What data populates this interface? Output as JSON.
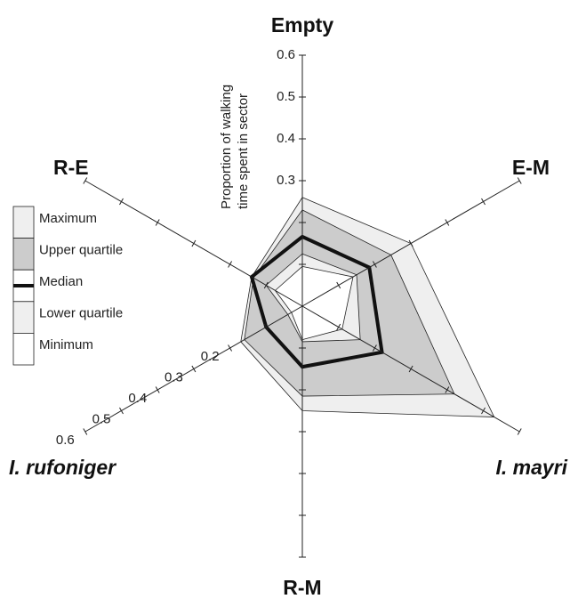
{
  "chart_data": {
    "type": "radar",
    "axis_label": [
      "Proportion of walking",
      "time spent in sector"
    ],
    "categories": [
      "Empty",
      "E-M",
      "I. mayri",
      "R-M",
      "I. rufoniger",
      "R-E"
    ],
    "rlim": [
      0,
      0.6
    ],
    "rticks": [
      0.1,
      0.2,
      0.3,
      0.4,
      0.5,
      0.6
    ],
    "series": [
      {
        "name": "Maximum",
        "color": "#efefef",
        "values": [
          0.26,
          0.3,
          0.53,
          0.25,
          0.17,
          0.14
        ]
      },
      {
        "name": "Upper quartile",
        "color": "#cccccc",
        "values": [
          0.23,
          0.245,
          0.42,
          0.215,
          0.16,
          0.135
        ]
      },
      {
        "name": "Median",
        "color": "#111111",
        "values": [
          0.166,
          0.185,
          0.22,
          0.145,
          0.1,
          0.14
        ]
      },
      {
        "name": "Lower quartile",
        "color": "#efefef",
        "values": [
          0.125,
          0.15,
          0.16,
          0.085,
          0.04,
          0.1
        ]
      },
      {
        "name": "Minimum",
        "color": "#ffffff",
        "values": [
          0.095,
          0.14,
          0.11,
          0.08,
          0.03,
          0.075
        ]
      }
    ]
  }
}
